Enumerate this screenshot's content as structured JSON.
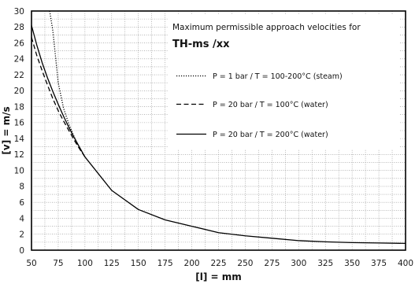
{
  "chart_data": {
    "type": "line",
    "title": "Maximum permissible approach velocities for",
    "subtitle": "TH-ms /xx",
    "xlabel": "[l] = mm",
    "ylabel": "[v] = m/s",
    "xlim": [
      50,
      400
    ],
    "ylim": [
      0,
      30
    ],
    "x_ticks": [
      50,
      75,
      100,
      125,
      150,
      175,
      200,
      225,
      250,
      275,
      300,
      325,
      350,
      375,
      400
    ],
    "y_ticks": [
      0,
      2,
      4,
      6,
      8,
      10,
      12,
      14,
      16,
      18,
      20,
      22,
      24,
      26,
      28,
      30
    ],
    "grid": true,
    "legend_position": "top-right",
    "series": [
      {
        "name": "P =   1 bar  / T = 100-200°C  (steam)",
        "style": "dotted",
        "x": [
          67,
          70,
          75,
          80,
          85,
          90,
          95,
          100
        ],
        "y": [
          30,
          27.5,
          21,
          17.8,
          15.8,
          14.2,
          12.8,
          11.7
        ]
      },
      {
        "name": "P = 20 bar  / T = 100°C  (water)",
        "style": "dashed",
        "x": [
          50,
          55,
          60,
          65,
          70,
          75,
          80,
          85,
          90,
          95,
          100
        ],
        "y": [
          26.7,
          24.4,
          22.5,
          20.7,
          19.0,
          17.5,
          16.2,
          15.0,
          13.8,
          12.7,
          11.7
        ]
      },
      {
        "name": "P = 20 bar  / T = 200°C  (water)",
        "style": "solid",
        "x": [
          50,
          55,
          60,
          65,
          70,
          75,
          80,
          85,
          90,
          95,
          100,
          125,
          150,
          175,
          200,
          225,
          250,
          275,
          300,
          325,
          350,
          375,
          400
        ],
        "y": [
          28.2,
          25.7,
          23.5,
          21.6,
          19.9,
          18.3,
          16.8,
          15.4,
          14.1,
          12.9,
          11.7,
          7.5,
          5.1,
          3.8,
          3.0,
          2.2,
          1.8,
          1.5,
          1.2,
          1.05,
          0.95,
          0.9,
          0.85
        ]
      }
    ]
  }
}
